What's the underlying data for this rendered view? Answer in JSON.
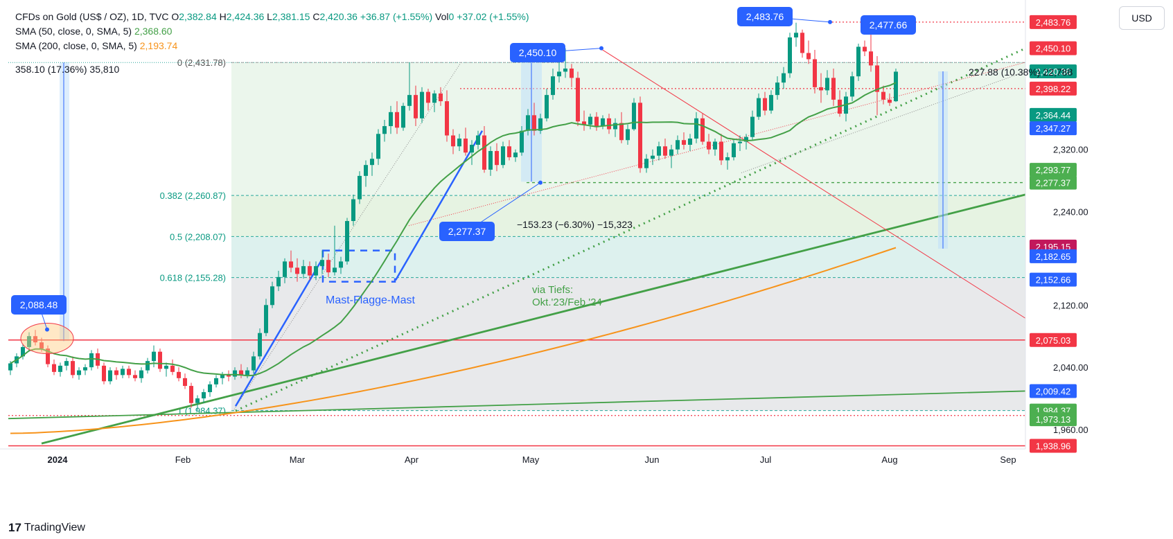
{
  "legend": {
    "symbol": "CFDs on Gold (US$ / OZ), 1D, TVC",
    "o_label": "O",
    "o_val": "2,382.84",
    "h_label": "H",
    "h_val": "2,424.36",
    "l_label": "L",
    "l_val": "2,381.15",
    "c_label": "C",
    "c_val": "2,420.36",
    "change": "+36.87 (+1.55%)",
    "vol_label": "Vol",
    "vol_val": "0",
    "vol_change": "+37.02 (+1.55%)",
    "sma50_label": "SMA (50, close, 0, SMA, 5)",
    "sma50_val": "2,368.60",
    "sma200_label": "SMA (200, close, 0, SMA, 5)",
    "sma200_val": "2,193.74"
  },
  "currency": "USD",
  "brand": "TradingView",
  "measures": {
    "m1": "358.10 (17.36%) 35,810",
    "m2": "−153.23 (−6.30%) −15,323",
    "m3": "227.88 (10.38%) 22,788"
  },
  "chart_data": {
    "type": "candlestick",
    "title": "CFDs on Gold (US$ / OZ), 1D, TVC",
    "ylim": [
      1935,
      2505
    ],
    "x_ticks": [
      "2024",
      "Feb",
      "Mar",
      "Apr",
      "May",
      "Jun",
      "Jul",
      "Aug",
      "Sep"
    ],
    "y_ticks": [
      "1,960.00",
      "2,040.00",
      "2,120.00",
      "2,240.00",
      "2,320.00"
    ],
    "candles": [
      [
        2036,
        2048,
        2030,
        2045
      ],
      [
        2045,
        2058,
        2040,
        2054
      ],
      [
        2054,
        2070,
        2050,
        2066
      ],
      [
        2066,
        2085,
        2060,
        2080
      ],
      [
        2080,
        2088,
        2068,
        2072
      ],
      [
        2072,
        2078,
        2060,
        2064
      ],
      [
        2064,
        2068,
        2040,
        2044
      ],
      [
        2044,
        2050,
        2030,
        2034
      ],
      [
        2034,
        2046,
        2028,
        2042
      ],
      [
        2042,
        2052,
        2036,
        2048
      ],
      [
        2048,
        2054,
        2026,
        2030
      ],
      [
        2030,
        2040,
        2024,
        2036
      ],
      [
        2036,
        2044,
        2030,
        2040
      ],
      [
        2040,
        2062,
        2036,
        2058
      ],
      [
        2058,
        2064,
        2038,
        2042
      ],
      [
        2042,
        2046,
        2018,
        2022
      ],
      [
        2022,
        2040,
        2018,
        2036
      ],
      [
        2036,
        2040,
        2024,
        2030
      ],
      [
        2030,
        2042,
        2026,
        2038
      ],
      [
        2038,
        2042,
        2026,
        2030
      ],
      [
        2030,
        2036,
        2022,
        2026
      ],
      [
        2026,
        2040,
        2020,
        2036
      ],
      [
        2036,
        2052,
        2032,
        2048
      ],
      [
        2048,
        2068,
        2040,
        2060
      ],
      [
        2060,
        2064,
        2034,
        2038
      ],
      [
        2038,
        2046,
        2028,
        2042
      ],
      [
        2042,
        2050,
        2030,
        2034
      ],
      [
        2034,
        2040,
        2022,
        2026
      ],
      [
        2026,
        2032,
        2012,
        2016
      ],
      [
        2016,
        2020,
        1988,
        1994
      ],
      [
        1994,
        2004,
        1984,
        2000
      ],
      [
        2000,
        2012,
        1994,
        2008
      ],
      [
        2008,
        2022,
        2002,
        2018
      ],
      [
        2018,
        2030,
        2014,
        2026
      ],
      [
        2026,
        2034,
        2018,
        2030
      ],
      [
        2030,
        2036,
        2022,
        2028
      ],
      [
        2028,
        2040,
        2024,
        2036
      ],
      [
        2036,
        2044,
        2026,
        2030
      ],
      [
        2030,
        2040,
        2026,
        2036
      ],
      [
        2036,
        2060,
        2032,
        2054
      ],
      [
        2054,
        2090,
        2050,
        2084
      ],
      [
        2084,
        2128,
        2080,
        2120
      ],
      [
        2120,
        2150,
        2116,
        2144
      ],
      [
        2144,
        2164,
        2138,
        2156
      ],
      [
        2156,
        2180,
        2148,
        2176
      ],
      [
        2176,
        2190,
        2162,
        2168
      ],
      [
        2168,
        2180,
        2150,
        2160
      ],
      [
        2160,
        2178,
        2154,
        2170
      ],
      [
        2170,
        2176,
        2152,
        2158
      ],
      [
        2158,
        2176,
        2152,
        2170
      ],
      [
        2170,
        2190,
        2160,
        2178
      ],
      [
        2178,
        2186,
        2156,
        2162
      ],
      [
        2162,
        2222,
        2158,
        2168
      ],
      [
        2168,
        2182,
        2160,
        2176
      ],
      [
        2176,
        2232,
        2172,
        2228
      ],
      [
        2228,
        2262,
        2222,
        2256
      ],
      [
        2256,
        2292,
        2250,
        2286
      ],
      [
        2286,
        2306,
        2272,
        2300
      ],
      [
        2300,
        2316,
        2286,
        2308
      ],
      [
        2308,
        2346,
        2300,
        2340
      ],
      [
        2340,
        2358,
        2330,
        2350
      ],
      [
        2350,
        2376,
        2340,
        2368
      ],
      [
        2368,
        2382,
        2340,
        2348
      ],
      [
        2348,
        2380,
        2344,
        2376
      ],
      [
        2376,
        2432,
        2370,
        2390
      ],
      [
        2390,
        2402,
        2350,
        2360
      ],
      [
        2360,
        2400,
        2354,
        2394
      ],
      [
        2394,
        2398,
        2370,
        2380
      ],
      [
        2380,
        2396,
        2368,
        2392
      ],
      [
        2392,
        2400,
        2376,
        2382
      ],
      [
        2382,
        2396,
        2330,
        2338
      ],
      [
        2338,
        2346,
        2314,
        2324
      ],
      [
        2324,
        2340,
        2318,
        2334
      ],
      [
        2334,
        2348,
        2312,
        2316
      ],
      [
        2316,
        2332,
        2300,
        2326
      ],
      [
        2326,
        2344,
        2320,
        2338
      ],
      [
        2338,
        2350,
        2290,
        2294
      ],
      [
        2294,
        2324,
        2286,
        2318
      ],
      [
        2318,
        2328,
        2292,
        2300
      ],
      [
        2300,
        2330,
        2296,
        2324
      ],
      [
        2324,
        2332,
        2306,
        2310
      ],
      [
        2310,
        2320,
        2304,
        2316
      ],
      [
        2316,
        2350,
        2312,
        2344
      ],
      [
        2344,
        2372,
        2338,
        2364
      ],
      [
        2364,
        2380,
        2338,
        2344
      ],
      [
        2344,
        2366,
        2340,
        2360
      ],
      [
        2360,
        2398,
        2356,
        2390
      ],
      [
        2390,
        2424,
        2384,
        2414
      ],
      [
        2414,
        2432,
        2406,
        2420
      ],
      [
        2420,
        2450,
        2412,
        2424
      ],
      [
        2424,
        2430,
        2400,
        2412
      ],
      [
        2412,
        2420,
        2350,
        2356
      ],
      [
        2356,
        2370,
        2344,
        2352
      ],
      [
        2352,
        2366,
        2346,
        2362
      ],
      [
        2362,
        2368,
        2344,
        2350
      ],
      [
        2350,
        2364,
        2346,
        2360
      ],
      [
        2360,
        2366,
        2340,
        2346
      ],
      [
        2346,
        2360,
        2336,
        2354
      ],
      [
        2354,
        2368,
        2328,
        2332
      ],
      [
        2332,
        2352,
        2326,
        2346
      ],
      [
        2346,
        2386,
        2344,
        2380
      ],
      [
        2380,
        2388,
        2290,
        2296
      ],
      [
        2296,
        2314,
        2290,
        2308
      ],
      [
        2308,
        2320,
        2300,
        2312
      ],
      [
        2312,
        2330,
        2306,
        2324
      ],
      [
        2324,
        2334,
        2308,
        2312
      ],
      [
        2312,
        2326,
        2296,
        2320
      ],
      [
        2320,
        2338,
        2314,
        2332
      ],
      [
        2332,
        2342,
        2320,
        2326
      ],
      [
        2326,
        2340,
        2318,
        2334
      ],
      [
        2334,
        2368,
        2328,
        2360
      ],
      [
        2360,
        2366,
        2326,
        2330
      ],
      [
        2330,
        2340,
        2314,
        2320
      ],
      [
        2320,
        2334,
        2312,
        2330
      ],
      [
        2330,
        2340,
        2300,
        2306
      ],
      [
        2306,
        2316,
        2294,
        2310
      ],
      [
        2310,
        2334,
        2306,
        2328
      ],
      [
        2328,
        2338,
        2318,
        2330
      ],
      [
        2330,
        2340,
        2320,
        2336
      ],
      [
        2336,
        2370,
        2332,
        2362
      ],
      [
        2362,
        2392,
        2358,
        2386
      ],
      [
        2386,
        2394,
        2364,
        2370
      ],
      [
        2370,
        2396,
        2366,
        2390
      ],
      [
        2390,
        2414,
        2384,
        2406
      ],
      [
        2406,
        2426,
        2398,
        2418
      ],
      [
        2418,
        2470,
        2412,
        2464
      ],
      [
        2464,
        2483,
        2452,
        2470
      ],
      [
        2470,
        2474,
        2438,
        2444
      ],
      [
        2444,
        2460,
        2430,
        2436
      ],
      [
        2436,
        2448,
        2392,
        2400
      ],
      [
        2400,
        2418,
        2380,
        2396
      ],
      [
        2396,
        2422,
        2390,
        2412
      ],
      [
        2412,
        2424,
        2376,
        2384
      ],
      [
        2384,
        2396,
        2362,
        2366
      ],
      [
        2366,
        2394,
        2356,
        2388
      ],
      [
        2388,
        2420,
        2382,
        2414
      ],
      [
        2414,
        2456,
        2408,
        2452
      ],
      [
        2452,
        2460,
        2440,
        2446
      ],
      [
        2446,
        2478,
        2420,
        2428
      ],
      [
        2428,
        2440,
        2364,
        2394
      ],
      [
        2394,
        2402,
        2378,
        2384
      ],
      [
        2384,
        2392,
        2376,
        2380
      ],
      [
        2382,
        2424,
        2381,
        2420
      ]
    ],
    "sma50_ends": [
      "2,368.60"
    ],
    "price_labels": [
      {
        "text": "2,483.76",
        "price": 2483.76,
        "color": "#f23645"
      },
      {
        "text": "2,450.10",
        "price": 2450.1,
        "color": "#f23645"
      },
      {
        "text": "2,420.36",
        "price": 2420.36,
        "color": "#089981"
      },
      {
        "text": "2,398.22",
        "price": 2398.22,
        "color": "#f23645"
      },
      {
        "text": "2,364.44",
        "price": 2364.44,
        "color": "#089981"
      },
      {
        "text": "2,347.27",
        "price": 2347.27,
        "color": "#2962ff"
      },
      {
        "text": "2,293.77",
        "price": 2293.77,
        "color": "#4caf50"
      },
      {
        "text": "2,277.37",
        "price": 2277.37,
        "color": "#4caf50"
      },
      {
        "text": "2,195.15",
        "price": 2195.15,
        "color": "#c2185b"
      },
      {
        "text": "2,182.65",
        "price": 2182.65,
        "color": "#2962ff"
      },
      {
        "text": "2,152.66",
        "price": 2152.66,
        "color": "#2962ff"
      },
      {
        "text": "2,075.03",
        "price": 2075.03,
        "color": "#f23645"
      },
      {
        "text": "2,009.42",
        "price": 2009.42,
        "color": "#2962ff"
      },
      {
        "text": "1,984.37",
        "price": 1984.37,
        "color": "#4caf50"
      },
      {
        "text": "1,973.13",
        "price": 1973.13,
        "color": "#4caf50"
      },
      {
        "text": "1,938.96",
        "price": 1938.96,
        "color": "#f23645"
      }
    ],
    "fib_labels": [
      {
        "text": "0 (2,431.78)",
        "price": 2431.78
      },
      {
        "text": "0.382 (2,260.87)",
        "price": 2260.87
      },
      {
        "text": "0.5 (2,208.07)",
        "price": 2208.07
      },
      {
        "text": "0.618 (2,155.28)",
        "price": 2155.28
      },
      {
        "text": "1 (1,984.37)",
        "price": 1984.37
      }
    ],
    "callouts": [
      "2,088.48",
      "2,450.10",
      "2,483.76",
      "2,477.66",
      "2,277.37"
    ],
    "annotations": {
      "pattern": "Mast-Flagge-Mast",
      "via1": "via Tiefs:",
      "via2": "Okt.'23/Feb.'24"
    }
  }
}
